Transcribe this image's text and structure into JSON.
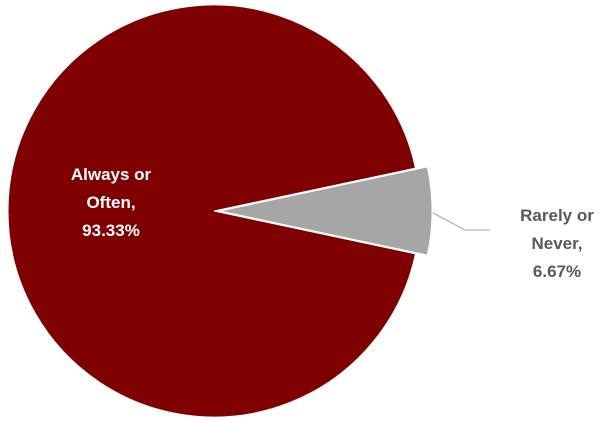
{
  "chart_data": {
    "type": "pie",
    "slices": [
      {
        "label": "Always or Often",
        "value_label": "93.33%",
        "value": 93.33,
        "color": "#7f0000"
      },
      {
        "label": "Rarely or Never",
        "value_label": "6.67%",
        "value": 6.67,
        "color": "#a6a6a6"
      }
    ],
    "labels": {
      "always": {
        "line1": "Always or",
        "line2": "Often,",
        "line3": "93.33%"
      },
      "rarely": {
        "line1": "Rarely or",
        "line2": "Never,",
        "line3": "6.67%"
      }
    },
    "legend": "none"
  }
}
